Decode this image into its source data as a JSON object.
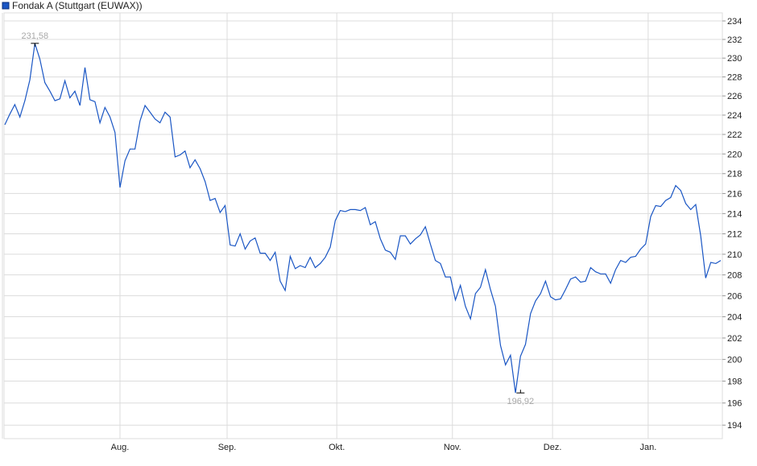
{
  "chart_data": {
    "type": "line",
    "title": "",
    "legend": {
      "label": "Fondak A (Stuttgart (EUWAX))",
      "placement": "top-left"
    },
    "series": [
      {
        "name": "Fondak A (Stuttgart (EUWAX))",
        "color": "#1a56c4",
        "values": [
          223.0,
          224.1,
          225.1,
          223.8,
          225.5,
          227.7,
          231.58,
          229.9,
          227.4,
          226.5,
          225.5,
          225.7,
          227.6,
          225.8,
          226.5,
          225.0,
          229.0,
          225.6,
          225.4,
          223.2,
          224.8,
          223.8,
          222.2,
          216.6,
          219.3,
          220.5,
          220.5,
          223.4,
          225.0,
          224.3,
          223.6,
          223.2,
          224.3,
          223.8,
          219.7,
          219.9,
          220.3,
          218.6,
          219.4,
          218.5,
          217.2,
          215.3,
          215.5,
          214.1,
          214.8,
          210.9,
          210.8,
          212.0,
          210.5,
          211.3,
          211.6,
          210.1,
          210.1,
          209.4,
          210.2,
          207.4,
          206.5,
          209.8,
          208.6,
          208.9,
          208.7,
          209.7,
          208.7,
          209.1,
          209.7,
          210.7,
          213.3,
          214.3,
          214.2,
          214.4,
          214.4,
          214.3,
          214.6,
          212.9,
          213.2,
          211.5,
          210.4,
          210.2,
          209.5,
          211.8,
          211.8,
          211.0,
          211.5,
          211.9,
          212.7,
          211.0,
          209.4,
          209.1,
          207.8,
          207.8,
          205.6,
          207.0,
          205.0,
          203.8,
          206.2,
          206.8,
          208.5,
          206.6,
          205.0,
          201.3,
          199.5,
          200.4,
          196.92,
          200.3,
          201.4,
          204.3,
          205.5,
          206.2,
          207.4,
          205.9,
          205.6,
          205.7,
          206.6,
          207.6,
          207.8,
          207.3,
          207.4,
          208.7,
          208.3,
          208.1,
          208.1,
          207.2,
          208.5,
          209.4,
          209.2,
          209.7,
          209.8,
          210.5,
          211.0,
          213.7,
          214.8,
          214.7,
          215.3,
          215.6,
          216.8,
          216.3,
          215.0,
          214.4,
          214.9,
          211.8,
          207.7,
          209.2,
          209.1,
          209.4
        ]
      }
    ],
    "x_ticks": [
      {
        "label": "Aug.",
        "index": 23
      },
      {
        "label": "Sep.",
        "index": 44.4
      },
      {
        "label": "Okt.",
        "index": 66.3
      },
      {
        "label": "Nov.",
        "index": 89.4
      },
      {
        "label": "Dez.",
        "index": 109.4
      },
      {
        "label": "Jan.",
        "index": 128.5
      }
    ],
    "y_ticks": [
      "194",
      "196",
      "198",
      "200",
      "202",
      "204",
      "206",
      "208",
      "210",
      "212",
      "214",
      "216",
      "218",
      "220",
      "222",
      "224",
      "226",
      "228",
      "230",
      "232",
      "234"
    ],
    "ylim": [
      193,
      235
    ],
    "yscale": "log",
    "y_axis_side": "right",
    "grid": true,
    "annotations": {
      "max": {
        "label": "231,58",
        "value": 231.58,
        "index": 6
      },
      "min": {
        "label": "196,92",
        "value": 196.92,
        "index": 103
      }
    },
    "colors": {
      "line": "#1a56c4",
      "grid": "#dcdcdc",
      "annotation_text": "#a8a8a8"
    }
  }
}
